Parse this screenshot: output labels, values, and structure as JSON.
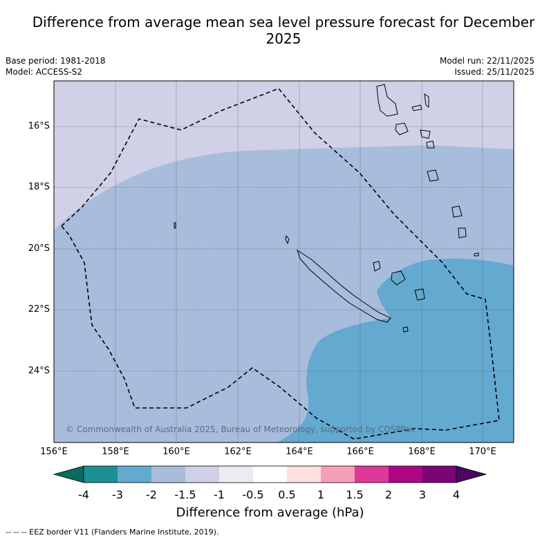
{
  "title": "Difference from average mean sea level pressure forecast for December 2025",
  "base_period": "Base period: 1981-2018",
  "model": "Model: ACCESS-S2",
  "model_run": "Model run: 22/11/2025",
  "issued": "Issued: 25/11/2025",
  "latitude_labels": [
    "16°S",
    "18°S",
    "20°S",
    "22°S",
    "24°S"
  ],
  "longitude_labels": [
    "156°E",
    "158°E",
    "160°E",
    "162°E",
    "164°E",
    "166°E",
    "168°E",
    "170°E"
  ],
  "copyright": "© Commonwealth of Australia 2025, Bureau of Meteorology, supported by COSPPac",
  "colorbar": {
    "title": "Difference from average (hPa)",
    "ticks": [
      "-4",
      "-3",
      "-2",
      "-1.5",
      "-1",
      "-0.5",
      "0.5",
      "1",
      "1.5",
      "2",
      "3",
      "4"
    ],
    "colors": [
      "#1d9096",
      "#63a9d0",
      "#a8bcdc",
      "#d0d0e6",
      "#ececf0",
      "#ffffff",
      "#ffdfdf",
      "#f5a0b8",
      "#de3898",
      "#ae0682",
      "#7b0477"
    ],
    "under_color": "#0b6a60",
    "over_color": "#4c065e"
  },
  "map_colors": {
    "band_minus_1_5_to_minus_1": "#d0d0e6",
    "band_minus_2_to_minus_1_5": "#a8bcdc",
    "band_minus_3_to_minus_2": "#63a9d0"
  },
  "footnote": "-- -- -- EEZ border V11 (Flanders Marine Institute, 2019)."
}
